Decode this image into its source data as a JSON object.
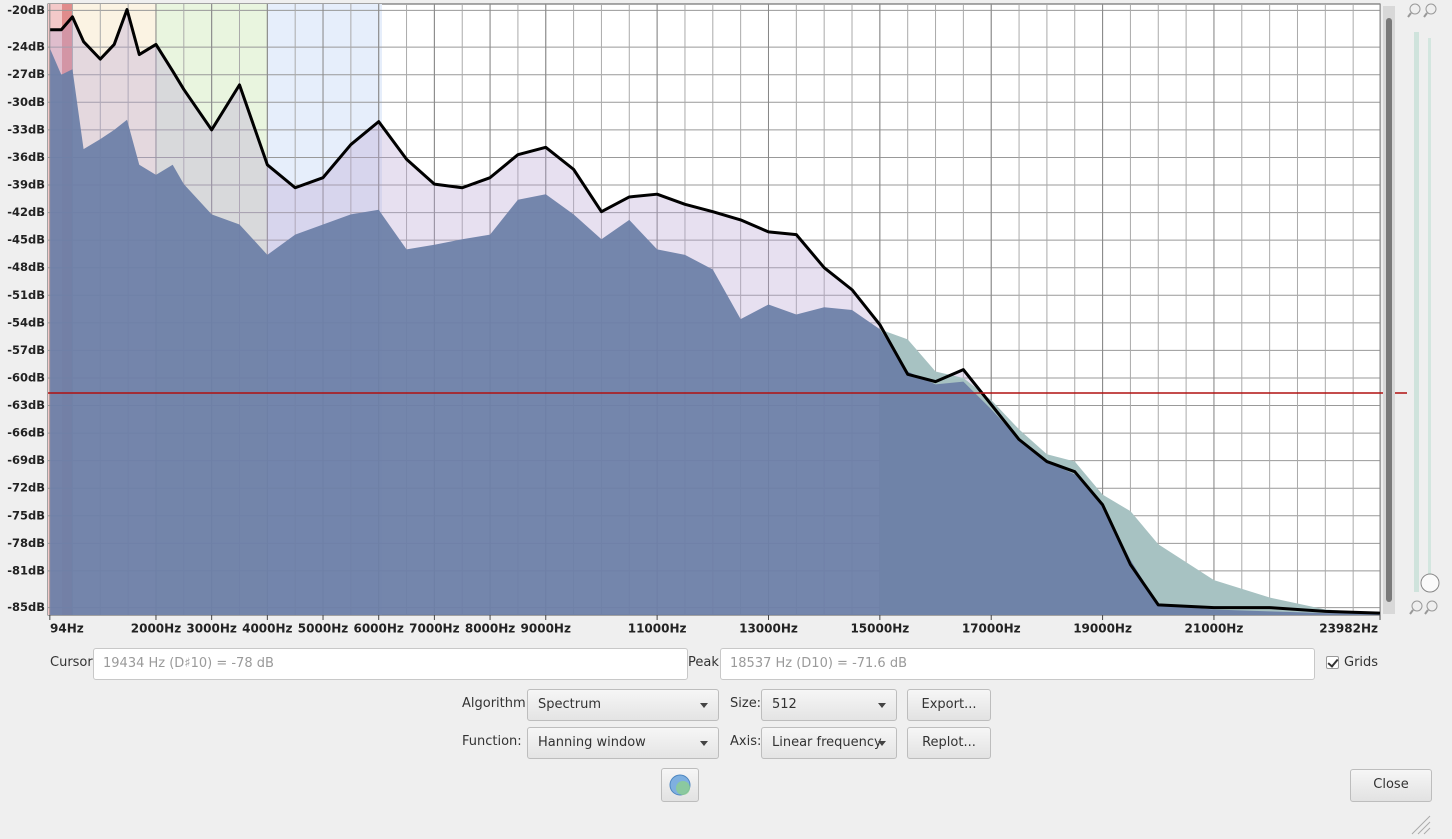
{
  "chart_data": {
    "type": "area",
    "x": [
      100,
      300,
      500,
      700,
      1000,
      1250,
      1480,
      1700,
      2000,
      2300,
      2500,
      3000,
      3500,
      4000,
      4500,
      5000,
      5500,
      6000,
      6500,
      7000,
      7500,
      8000,
      8500,
      9000,
      9500,
      10000,
      10500,
      11000,
      11500,
      12000,
      12500,
      13000,
      13500,
      14000,
      14500,
      15000,
      15500,
      16000,
      16500,
      17000,
      17500,
      18000,
      18500,
      19000,
      19500,
      20000,
      21000,
      22000,
      23000,
      23982
    ],
    "series": [
      {
        "color": "#000000",
        "values": [
          -22.1,
          -22.1,
          -20.7,
          -23.4,
          -25.3,
          -23.7,
          -19.9,
          -24.8,
          -23.7,
          -26.6,
          -28.6,
          -33.0,
          -28.1,
          -36.8,
          -39.3,
          -38.2,
          -34.6,
          -32.1,
          -36.2,
          -38.9,
          -39.3,
          -38.2,
          -35.7,
          -34.9,
          -37.3,
          -41.9,
          -40.3,
          -40.0,
          -41.1,
          -41.9,
          -42.8,
          -44.1,
          -44.4,
          -48.0,
          -50.4,
          -54.2,
          -59.6,
          -60.4,
          -59.1,
          -62.9,
          -66.7,
          -69.1,
          -70.2,
          -73.8,
          -80.3,
          -84.7,
          -85.0,
          -85.0,
          -85.4,
          -85.6
        ]
      },
      {
        "color": "#6a7ea6",
        "values": [
          -24.2,
          -27.0,
          -26.4,
          -35.1,
          -34.0,
          -33.0,
          -31.9,
          -36.8,
          -37.9,
          -36.8,
          -38.9,
          -42.2,
          -43.3,
          -46.6,
          -44.4,
          -43.3,
          -42.2,
          -41.7,
          -46.0,
          -45.5,
          -44.9,
          -44.4,
          -40.6,
          -40.0,
          -42.2,
          -44.9,
          -42.8,
          -46.0,
          -46.6,
          -48.2,
          -53.6,
          -52.0,
          -53.1,
          -52.3,
          -52.6,
          -54.7,
          -59.3,
          -60.7,
          -60.4,
          -63.4,
          -66.7,
          -69.1,
          -70.5,
          -73.8,
          -79.8,
          -84.7,
          -85.2,
          -85.4,
          -85.6,
          -85.6
        ]
      },
      {
        "color": "#a7c2c2",
        "values": [
          null,
          null,
          null,
          null,
          null,
          null,
          null,
          null,
          null,
          null,
          null,
          null,
          null,
          null,
          null,
          null,
          null,
          null,
          null,
          null,
          null,
          null,
          null,
          null,
          null,
          null,
          null,
          null,
          null,
          null,
          null,
          null,
          null,
          null,
          null,
          -54.7,
          -55.8,
          -59.3,
          -60.0,
          -62.4,
          -65.6,
          -68.3,
          -69.1,
          -72.7,
          -74.5,
          -78.1,
          -82.0,
          -83.9,
          -85.2,
          -85.6
        ]
      }
    ],
    "xlim": [
      61,
      23982
    ],
    "xticks": [
      {
        "value": 94,
        "label": "94Hz"
      },
      {
        "value": 2000,
        "label": "2000Hz"
      },
      {
        "value": 3000,
        "label": "3000Hz"
      },
      {
        "value": 4000,
        "label": "4000Hz"
      },
      {
        "value": 5000,
        "label": "5000Hz"
      },
      {
        "value": 6000,
        "label": "6000Hz"
      },
      {
        "value": 7000,
        "label": "7000Hz"
      },
      {
        "value": 8000,
        "label": "8000Hz"
      },
      {
        "value": 9000,
        "label": "9000Hz"
      },
      {
        "value": 11000,
        "label": "11000Hz"
      },
      {
        "value": 13000,
        "label": "13000Hz"
      },
      {
        "value": 15000,
        "label": "15000Hz"
      },
      {
        "value": 17000,
        "label": "17000Hz"
      },
      {
        "value": 19000,
        "label": "19000Hz"
      },
      {
        "value": 21000,
        "label": "21000Hz"
      },
      {
        "value": 23982,
        "label": "23982Hz"
      }
    ],
    "ylim": [
      -85.8,
      -19.3
    ],
    "yticks": [
      {
        "value": -20,
        "label": "-20dB"
      },
      {
        "value": -24,
        "label": "-24dB"
      },
      {
        "value": -27,
        "label": "-27dB"
      },
      {
        "value": -30,
        "label": "-30dB"
      },
      {
        "value": -33,
        "label": "-33dB"
      },
      {
        "value": -36,
        "label": "-36dB"
      },
      {
        "value": -39,
        "label": "-39dB"
      },
      {
        "value": -42,
        "label": "-42dB"
      },
      {
        "value": -45,
        "label": "-45dB"
      },
      {
        "value": -48,
        "label": "-48dB"
      },
      {
        "value": -51,
        "label": "-51dB"
      },
      {
        "value": -54,
        "label": "-54dB"
      },
      {
        "value": -57,
        "label": "-57dB"
      },
      {
        "value": -60,
        "label": "-60dB"
      },
      {
        "value": -63,
        "label": "-63dB"
      },
      {
        "value": -66,
        "label": "-66dB"
      },
      {
        "value": -69,
        "label": "-69dB"
      },
      {
        "value": -72,
        "label": "-72dB"
      },
      {
        "value": -75,
        "label": "-75dB"
      },
      {
        "value": -78,
        "label": "-78dB"
      },
      {
        "value": -81,
        "label": "-81dB"
      },
      {
        "value": -85,
        "label": "-85dB"
      }
    ],
    "grid": true
  },
  "controls": {
    "cursor": {
      "label": "Cursor:",
      "value": "19434 Hz (D♯10) = -78 dB"
    },
    "peak": {
      "label": "Peak:",
      "value": "18537 Hz (D10) = -71.6 dB"
    },
    "grids": {
      "label": "Grids",
      "checked": true
    },
    "algorithm": {
      "label": "Algorithm:",
      "value": "Spectrum"
    },
    "size": {
      "label": "Size:",
      "value": "512"
    },
    "export": "Export...",
    "function": {
      "label": "Function:",
      "value": "Hanning window"
    },
    "axis": {
      "label": "Axis:",
      "value": "Linear frequency"
    },
    "replot": "Replot...",
    "close": "Close"
  }
}
